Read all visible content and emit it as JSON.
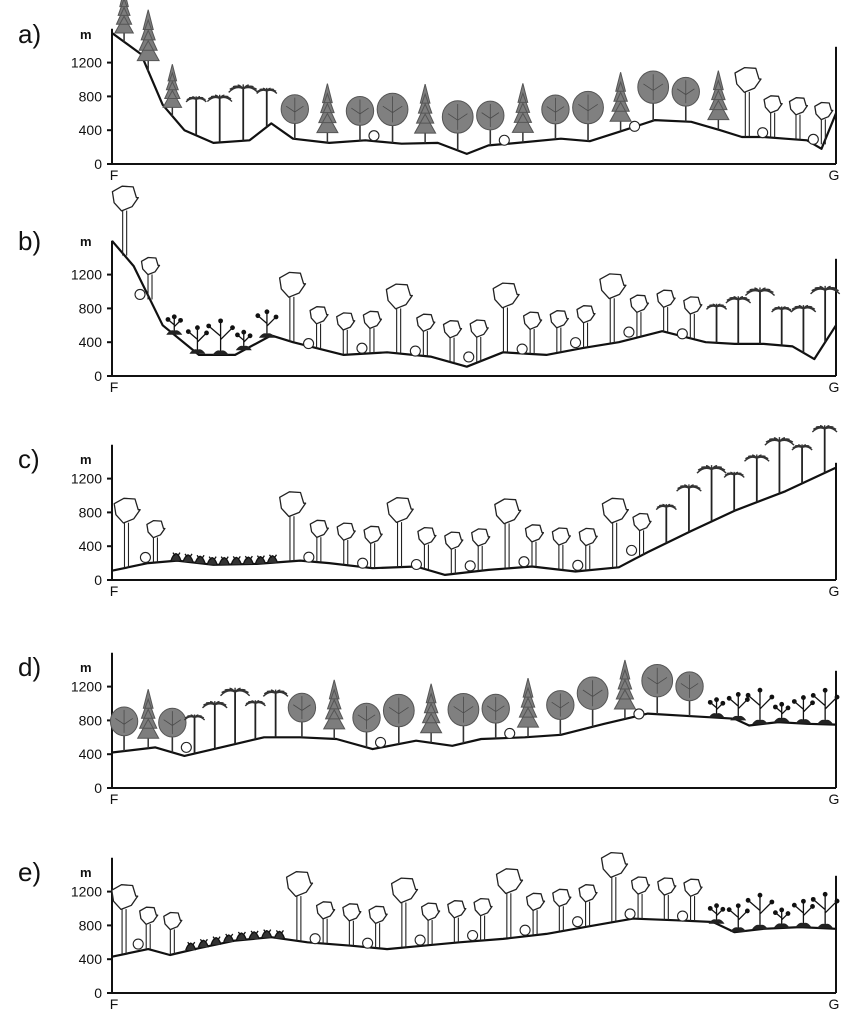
{
  "panels": [
    {
      "label": "a)",
      "unit": "m",
      "y_ticks": [
        "1200",
        "800",
        "400",
        "0"
      ],
      "start_label": "F",
      "end_label": "G",
      "vegetation": [
        "conifer-rainforest",
        "tree-fern-forest",
        "broadleaf-rainforest",
        "open-woodland-with-shrubs"
      ]
    },
    {
      "label": "b)",
      "unit": "m",
      "y_ticks": [
        "1200",
        "800",
        "400",
        "0"
      ],
      "start_label": "F",
      "end_label": "G",
      "vegetation": [
        "open-woodland-with-shrubs",
        "heath-shrubland",
        "open-woodland-with-shrubs",
        "tree-fern-forest"
      ]
    },
    {
      "label": "c)",
      "unit": "m",
      "y_ticks": [
        "1200",
        "800",
        "400",
        "0"
      ],
      "start_label": "F",
      "end_label": "G",
      "vegetation": [
        "open-woodland-with-shrubs",
        "low-shrubland",
        "open-woodland-with-shrubs",
        "tree-fern-forest"
      ]
    },
    {
      "label": "d)",
      "unit": "m",
      "y_ticks": [
        "1200",
        "800",
        "400",
        "0"
      ],
      "start_label": "F",
      "end_label": "G",
      "vegetation": [
        "broadleaf-rainforest",
        "tree-fern-forest",
        "broadleaf-rainforest",
        "heath-shrubland"
      ]
    },
    {
      "label": "e)",
      "unit": "m",
      "y_ticks": [
        "1200",
        "800",
        "400",
        "0"
      ],
      "start_label": "F",
      "end_label": "G",
      "vegetation": [
        "open-woodland-with-shrubs",
        "low-shrubland",
        "open-woodland-with-shrubs",
        "heath-shrubland"
      ]
    }
  ]
}
